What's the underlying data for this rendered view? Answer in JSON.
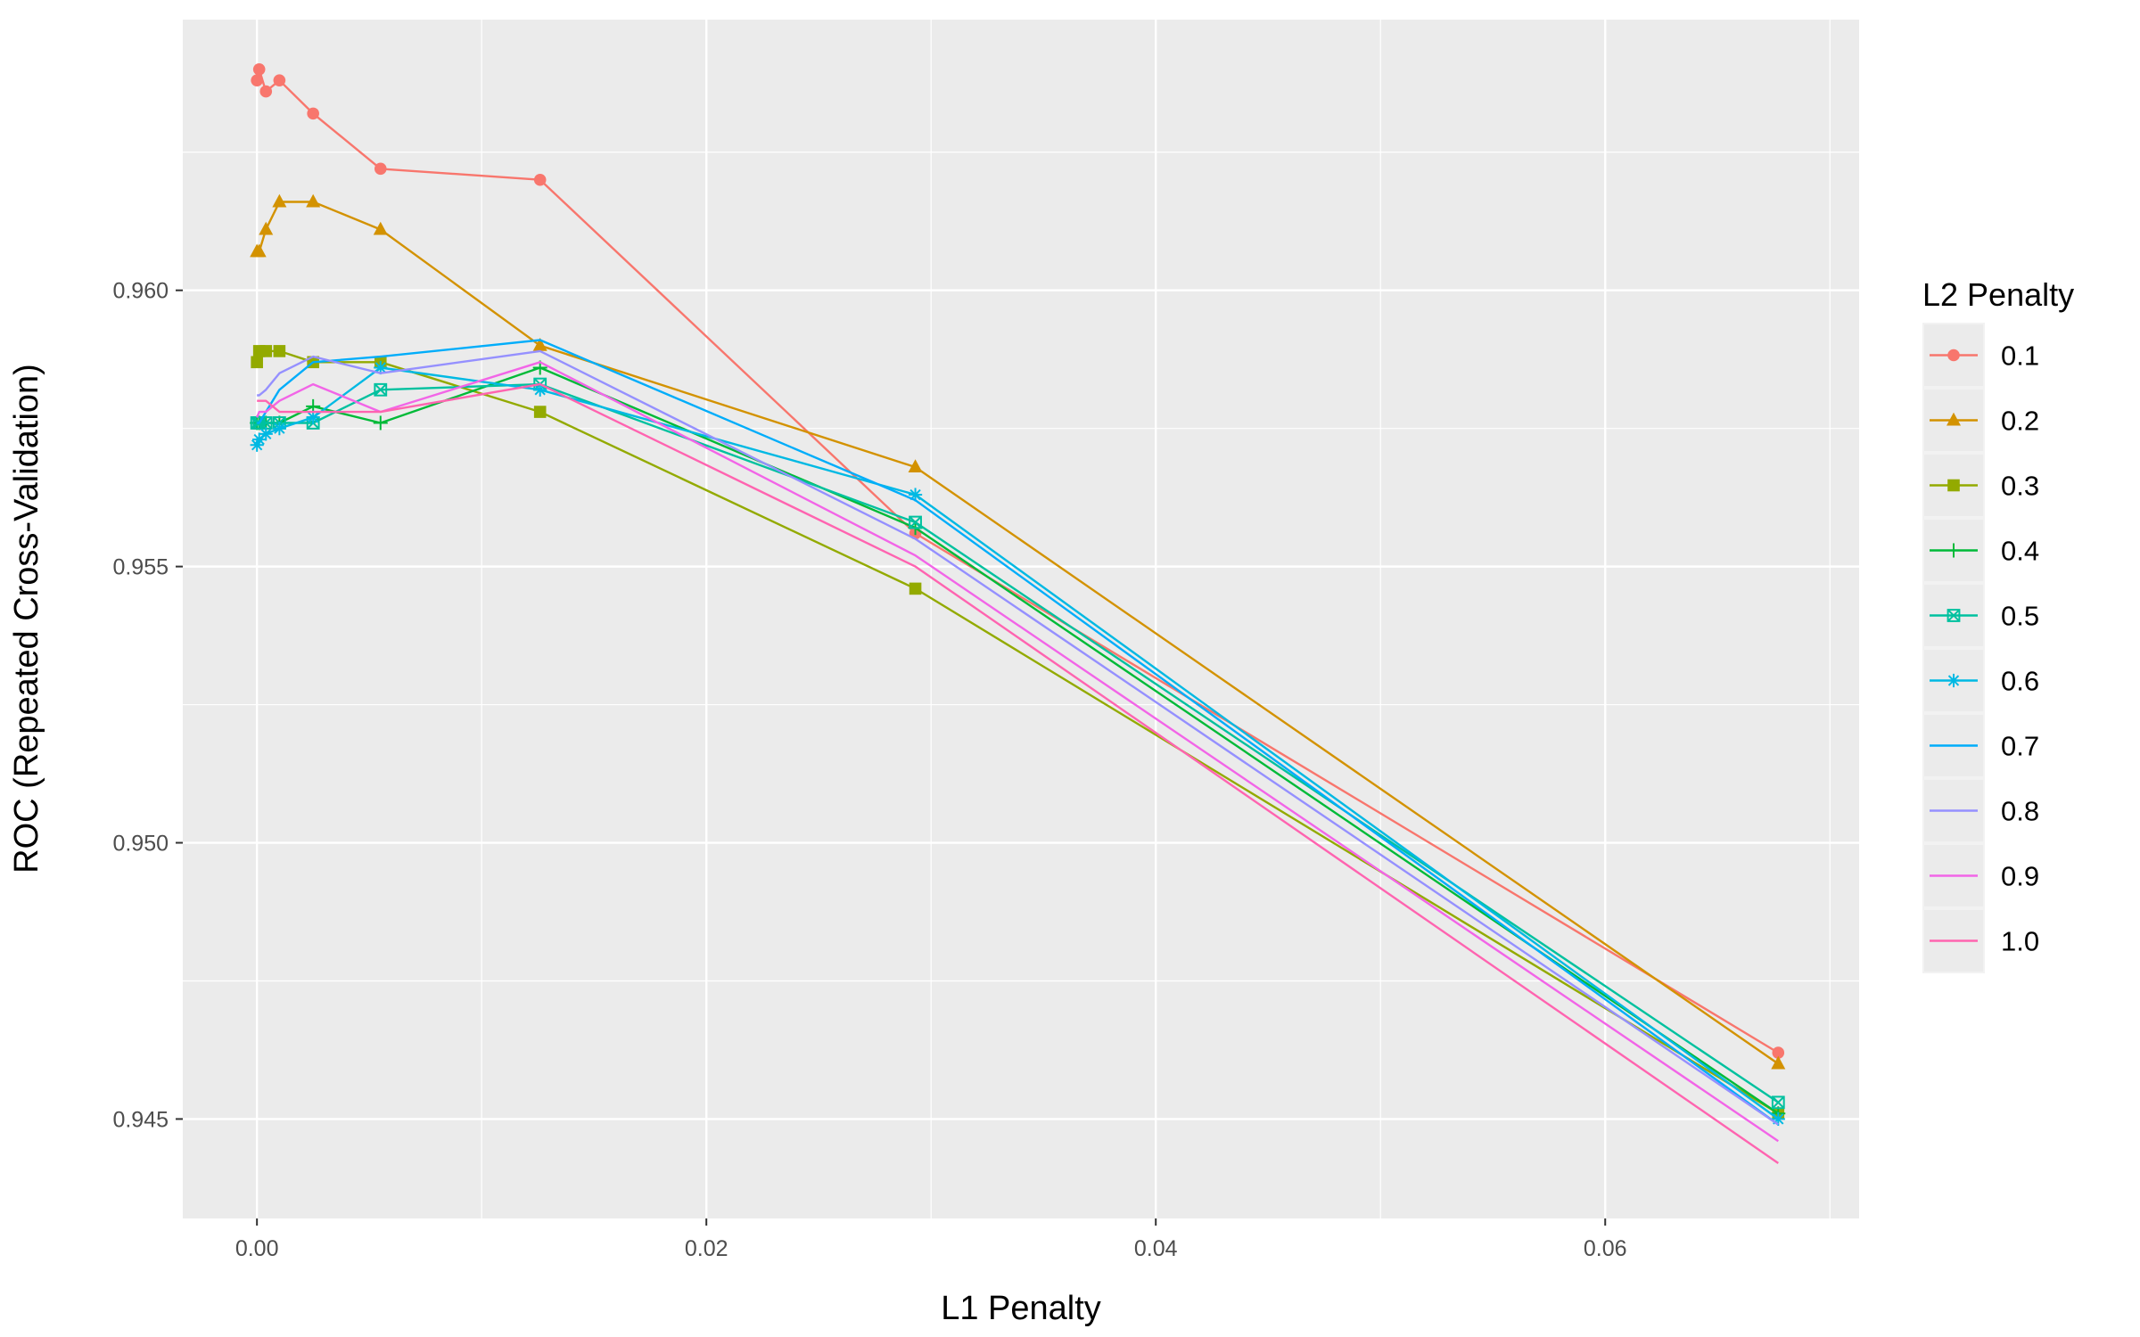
{
  "chart_data": {
    "type": "line",
    "xlabel": "L1 Penalty",
    "ylabel": "ROC (Repeated Cross-Validation)",
    "xlim": [
      -0.0033,
      0.0713
    ],
    "ylim": [
      0.9432,
      0.9649
    ],
    "x_ticks": [
      0.0,
      0.02,
      0.04,
      0.06
    ],
    "x_tick_labels": [
      "0.00",
      "0.02",
      "0.04",
      "0.06"
    ],
    "y_ticks": [
      0.945,
      0.95,
      0.955,
      0.96
    ],
    "y_tick_labels": [
      "0.945",
      "0.950",
      "0.955",
      "0.960"
    ],
    "grid": true,
    "legend": {
      "title": "L2 Penalty",
      "position": "right"
    },
    "x": [
      0.0,
      0.0001,
      0.0004,
      0.001,
      0.0025,
      0.0055,
      0.0126,
      0.0293,
      0.0677
    ],
    "series": [
      {
        "name": "0.1",
        "color": "#F8766D",
        "marker": "circle",
        "values": [
          0.9638,
          0.964,
          0.9636,
          0.9638,
          0.9632,
          0.9622,
          0.962,
          0.9556,
          0.9462
        ]
      },
      {
        "name": "0.2",
        "color": "#D39200",
        "marker": "triangle",
        "values": [
          0.9607,
          0.9607,
          0.9611,
          0.9616,
          0.9616,
          0.9611,
          0.959,
          0.9568,
          0.946
        ]
      },
      {
        "name": "0.3",
        "color": "#93AA00",
        "marker": "square",
        "values": [
          0.9587,
          0.9589,
          0.9589,
          0.9589,
          0.9587,
          0.9587,
          0.9578,
          0.9546,
          0.9451
        ]
      },
      {
        "name": "0.4",
        "color": "#00BA38",
        "marker": "plus",
        "values": [
          0.9576,
          0.9576,
          0.9576,
          0.9576,
          0.9579,
          0.9576,
          0.9586,
          0.9557,
          0.9451
        ]
      },
      {
        "name": "0.5",
        "color": "#00C19F",
        "marker": "square-x",
        "values": [
          0.9576,
          0.9576,
          0.9576,
          0.9576,
          0.9576,
          0.9582,
          0.9583,
          0.9558,
          0.9453
        ]
      },
      {
        "name": "0.6",
        "color": "#00B9E3",
        "marker": "asterisk",
        "values": [
          0.9572,
          0.9573,
          0.9574,
          0.9575,
          0.9577,
          0.9586,
          0.9582,
          0.9563,
          0.945
        ]
      },
      {
        "name": "0.7",
        "color": "#00ADFA",
        "marker": "none",
        "values": [
          0.9576,
          0.9576,
          0.9578,
          0.9582,
          0.9587,
          0.9588,
          0.9591,
          0.9562,
          0.9449
        ]
      },
      {
        "name": "0.8",
        "color": "#9590FF",
        "marker": "none",
        "values": [
          0.9581,
          0.9581,
          0.9582,
          0.9585,
          0.9588,
          0.9585,
          0.9589,
          0.9555,
          0.9449
        ]
      },
      {
        "name": "0.9",
        "color": "#F265E7",
        "marker": "none",
        "values": [
          0.9577,
          0.9578,
          0.9578,
          0.958,
          0.9583,
          0.9578,
          0.9587,
          0.9552,
          0.9446
        ]
      },
      {
        "name": "1.0",
        "color": "#FF64B0",
        "marker": "none",
        "values": [
          0.958,
          0.958,
          0.958,
          0.9578,
          0.9578,
          0.9578,
          0.9583,
          0.955,
          0.9442
        ]
      }
    ]
  }
}
